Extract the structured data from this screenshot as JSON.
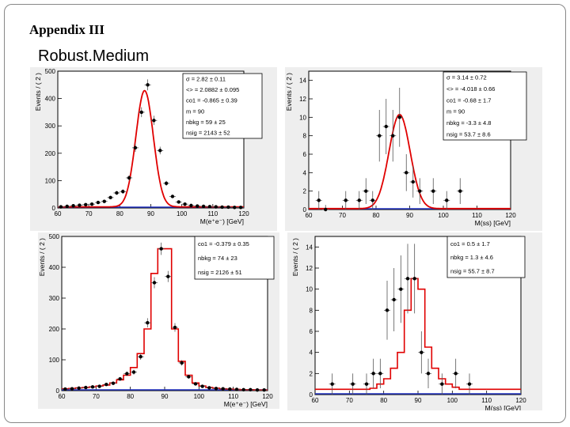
{
  "slide": {
    "title": "Appendix III",
    "subtitle": "Robust.Medium"
  },
  "colors": {
    "fit": "#e00000",
    "background_fit": "#2030c0",
    "points": "#000000"
  },
  "chart_data": [
    {
      "id": "ee_fit",
      "type": "scatter",
      "fit_type": "curve",
      "ylabel": "Events / ( 2 )",
      "xlabel": "M(e⁺e⁻) [GeV]",
      "xlim": [
        60,
        120
      ],
      "ylim": [
        0,
        500
      ],
      "xticks": [
        60,
        70,
        80,
        90,
        100,
        110,
        120
      ],
      "xtick_labels": [
        "60",
        "70",
        "80",
        "90",
        "100",
        "110",
        "120"
      ],
      "yticks": [
        0,
        100,
        200,
        300,
        400,
        500
      ],
      "ytick_labels": [
        "0",
        "100",
        "200",
        "300",
        "400",
        "500"
      ],
      "x": [
        61,
        63,
        65,
        67,
        69,
        71,
        73,
        75,
        77,
        79,
        81,
        83,
        85,
        87,
        89,
        91,
        93,
        95,
        97,
        99,
        101,
        103,
        105,
        107,
        109,
        111,
        113,
        115,
        117,
        119
      ],
      "y": [
        4,
        6,
        8,
        10,
        12,
        14,
        20,
        24,
        38,
        55,
        60,
        110,
        220,
        350,
        450,
        320,
        210,
        90,
        42,
        22,
        14,
        9,
        7,
        6,
        5,
        4,
        3,
        3,
        2,
        2
      ],
      "err": [
        2,
        2,
        3,
        3,
        3,
        4,
        4,
        5,
        6,
        7,
        8,
        10,
        15,
        18,
        20,
        17,
        14,
        9,
        6,
        5,
        4,
        3,
        3,
        2,
        2,
        2,
        2,
        2,
        1,
        1
      ],
      "fit": {
        "mean": 88,
        "sigma": 2.82,
        "amp": 425,
        "bkg": 4
      },
      "stats": [
        {
          "label": "σ = ",
          "value": "2.82 ± 0.11"
        },
        {
          "label": "<> = ",
          "value": "2.0882 ± 0.095"
        },
        {
          "label": "co1 = ",
          "value": "-0.865 ± 0.39"
        },
        {
          "label": "m = ",
          "value": "90"
        },
        {
          "label": "nbkg = ",
          "value": "59 ± 25"
        },
        {
          "label": "nsig = ",
          "value": "2143 ± 52"
        }
      ]
    },
    {
      "id": "ss_fit",
      "type": "scatter",
      "fit_type": "curve",
      "ylabel": "Events / ( 2 )",
      "xlabel": "M(ss) [GeV]",
      "xlim": [
        60,
        120
      ],
      "ylim": [
        0,
        15
      ],
      "xticks": [
        60,
        70,
        80,
        90,
        100,
        110,
        120
      ],
      "xtick_labels": [
        "60",
        "70",
        "80",
        "90",
        "100",
        "110",
        "120"
      ],
      "yticks": [
        0,
        2,
        4,
        6,
        8,
        10,
        12,
        14
      ],
      "ytick_labels": [
        "0",
        "2",
        "4",
        "6",
        "8",
        "10",
        "12",
        "14"
      ],
      "x": [
        63,
        65,
        71,
        75,
        77,
        79,
        81,
        83,
        85,
        87,
        89,
        91,
        93,
        97,
        101,
        105
      ],
      "y": [
        1,
        0,
        1,
        1,
        2,
        1,
        8,
        9,
        8,
        10,
        4,
        3,
        2,
        2,
        1,
        2
      ],
      "err": [
        1,
        0.5,
        1,
        1,
        1.4,
        1,
        2.8,
        3,
        2.8,
        3.2,
        2,
        1.7,
        1.4,
        1.4,
        1,
        1.4
      ],
      "fit": {
        "mean": 87,
        "sigma": 3.14,
        "amp": 10.2,
        "bkg": 0.1
      },
      "stats": [
        {
          "label": "σ = ",
          "value": "3.14 ± 0.72"
        },
        {
          "label": "<> = ",
          "value": "-4.018 ± 0.66"
        },
        {
          "label": "co1 = ",
          "value": "-0.68 ± 1.7"
        },
        {
          "label": "m = ",
          "value": "90"
        },
        {
          "label": "nbkg = ",
          "value": "-3.3 ± 4.8"
        },
        {
          "label": "nsig = ",
          "value": "53.7 ± 8.6"
        }
      ]
    },
    {
      "id": "ee_hist",
      "type": "scatter",
      "fit_type": "histogram",
      "ylabel": "Events / ( 2 )",
      "xlabel": "M(e⁺e⁻) [GeV]",
      "xlim": [
        60,
        120
      ],
      "ylim": [
        0,
        500
      ],
      "xticks": [
        60,
        70,
        80,
        90,
        100,
        110,
        120
      ],
      "xtick_labels": [
        "60",
        "70",
        "80",
        "90",
        "100",
        "110",
        "120"
      ],
      "yticks": [
        0,
        100,
        200,
        300,
        400,
        500
      ],
      "ytick_labels": [
        "0",
        "100",
        "200",
        "300",
        "400",
        "500"
      ],
      "x": [
        61,
        63,
        65,
        67,
        69,
        71,
        73,
        75,
        77,
        79,
        81,
        83,
        85,
        87,
        89,
        91,
        93,
        95,
        97,
        99,
        101,
        103,
        105,
        107,
        109,
        111,
        113,
        115,
        117,
        119
      ],
      "y": [
        5,
        6,
        8,
        10,
        12,
        14,
        20,
        24,
        38,
        55,
        60,
        110,
        220,
        350,
        460,
        370,
        205,
        90,
        45,
        22,
        14,
        9,
        7,
        6,
        5,
        4,
        3,
        3,
        2,
        2
      ],
      "err": [
        2,
        2,
        3,
        3,
        3,
        4,
        4,
        5,
        6,
        7,
        8,
        10,
        15,
        18,
        20,
        18,
        14,
        9,
        6,
        5,
        4,
        3,
        3,
        2,
        2,
        2,
        2,
        2,
        1,
        1
      ],
      "hist_edges": [
        60,
        62,
        64,
        66,
        68,
        70,
        72,
        74,
        76,
        78,
        80,
        82,
        84,
        86,
        88,
        90,
        92,
        94,
        96,
        98,
        100,
        102,
        104,
        106,
        108,
        110,
        112,
        114,
        116,
        118,
        120
      ],
      "hist_values": [
        6,
        7,
        9,
        10,
        12,
        15,
        18,
        25,
        35,
        50,
        75,
        120,
        200,
        380,
        460,
        460,
        200,
        95,
        50,
        25,
        15,
        10,
        8,
        6,
        5,
        4,
        3,
        3,
        2,
        2
      ],
      "stats": [
        {
          "label": "co1 = ",
          "value": "-0.379 ± 0.35"
        },
        {
          "label": "nbkg = ",
          "value": "74 ± 23"
        },
        {
          "label": "nsig = ",
          "value": "2126 ± 51"
        }
      ]
    },
    {
      "id": "ss_hist",
      "type": "scatter",
      "fit_type": "histogram",
      "ylabel": "Events / ( 2 )",
      "xlabel": "M(ss) [GeV]",
      "xlim": [
        60,
        120
      ],
      "ylim": [
        0,
        15
      ],
      "xticks": [
        60,
        70,
        80,
        90,
        100,
        110,
        120
      ],
      "xtick_labels": [
        "60",
        "70",
        "80",
        "90",
        "100",
        "110",
        "120"
      ],
      "yticks": [
        0,
        2,
        4,
        6,
        8,
        10,
        12,
        14
      ],
      "ytick_labels": [
        "0",
        "2",
        "4",
        "6",
        "8",
        "10",
        "12",
        "14"
      ],
      "x": [
        65,
        71,
        75,
        77,
        79,
        81,
        83,
        85,
        87,
        89,
        91,
        93,
        97,
        101,
        105
      ],
      "y": [
        1,
        1,
        1,
        2,
        2,
        8,
        9,
        10,
        11,
        11,
        4,
        2,
        1,
        2,
        1
      ],
      "err": [
        1,
        1,
        1,
        1.4,
        1.4,
        2.8,
        3,
        3.2,
        3.3,
        3.3,
        2,
        1.4,
        1,
        1.4,
        1
      ],
      "hist_edges": [
        60,
        62,
        64,
        66,
        68,
        70,
        72,
        74,
        76,
        78,
        80,
        82,
        84,
        86,
        88,
        90,
        92,
        94,
        96,
        98,
        100,
        102,
        104,
        106,
        108,
        110,
        112,
        114,
        116,
        118,
        120
      ],
      "hist_values": [
        0.5,
        0.5,
        0.5,
        0.5,
        0.5,
        0.5,
        0.5,
        0.5,
        0.6,
        1,
        1.5,
        2.5,
        4,
        8,
        11,
        10,
        4.5,
        2.5,
        1.5,
        1,
        0.7,
        0.5,
        0.5,
        0.5,
        0.5,
        0.5,
        0.5,
        0.5,
        0.5,
        0.5
      ],
      "stats": [
        {
          "label": "co1 = ",
          "value": "0.5 ± 1.7"
        },
        {
          "label": "nbkg = ",
          "value": "1.3 ± 4.6"
        },
        {
          "label": "nsig = ",
          "value": "55.7 ± 8.7"
        }
      ]
    }
  ]
}
